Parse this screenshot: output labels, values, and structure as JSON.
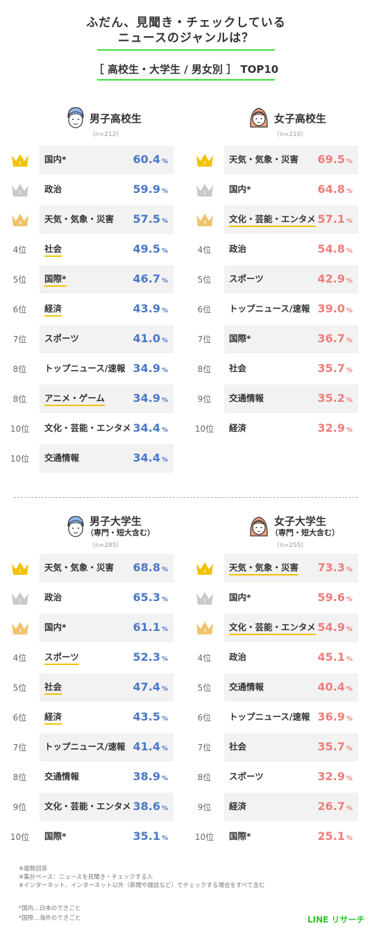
{
  "header": {
    "title_line1": "ふだん、見聞き・チェックしている",
    "title_line2": "ニュースのジャンルは？",
    "subtitle": "［ 高校生・大学生 / 男女別 ］ TOP10"
  },
  "colors": {
    "boys": "#4a78c8",
    "girls": "#ef7d78",
    "accent_green": "#39e039",
    "gold": "#f2c200",
    "silver": "#c8c8c8",
    "bronze": "#eec36b"
  },
  "chart_data": [
    {
      "type": "table",
      "group": "男子高校生",
      "group_sub": "",
      "n": "（n=212）",
      "ranks": [
        "1",
        "2",
        "3",
        "4位",
        "5位",
        "6位",
        "7位",
        "8位",
        "8位",
        "10位",
        "10位"
      ],
      "categories": [
        "国内*",
        "政治",
        "天気・気象・災害",
        "社会",
        "国際*",
        "経済",
        "スポーツ",
        "トップニュース/速報",
        "アニメ・ゲーム",
        "文化・芸能・エンタメ",
        "交通情報"
      ],
      "values": [
        60.4,
        59.9,
        57.5,
        49.5,
        46.7,
        43.9,
        41.0,
        34.9,
        34.9,
        34.4,
        34.4
      ],
      "labels": [
        "60.4",
        "59.9",
        "57.5",
        "49.5",
        "46.7",
        "43.9",
        "41.0",
        "34.9",
        "34.9",
        "34.4",
        "34.4"
      ],
      "highlight": [
        false,
        false,
        false,
        true,
        true,
        true,
        false,
        false,
        true,
        false,
        false
      ],
      "unit": "%"
    },
    {
      "type": "table",
      "group": "女子高校生",
      "group_sub": "",
      "n": "（n=210）",
      "ranks": [
        "1",
        "2",
        "3",
        "4位",
        "5位",
        "6位",
        "7位",
        "8位",
        "9位",
        "10位"
      ],
      "categories": [
        "天気・気象・災害",
        "国内*",
        "文化・芸能・エンタメ",
        "政治",
        "スポーツ",
        "トップニュース/速報",
        "国際*",
        "社会",
        "交通情報",
        "経済"
      ],
      "values": [
        69.5,
        64.8,
        57.1,
        54.8,
        42.9,
        39.0,
        36.7,
        35.7,
        35.2,
        32.9
      ],
      "labels": [
        "69.5",
        "64.8",
        "57.1",
        "54.8",
        "42.9",
        "39.0",
        "36.7",
        "35.7",
        "35.2",
        "32.9"
      ],
      "highlight": [
        false,
        false,
        true,
        false,
        false,
        false,
        false,
        false,
        false,
        false
      ],
      "unit": "%"
    },
    {
      "type": "table",
      "group": "男子大学生",
      "group_sub": "（専門・短大含む）",
      "n": "（n=285）",
      "ranks": [
        "1",
        "2",
        "3",
        "4位",
        "5位",
        "6位",
        "7位",
        "8位",
        "9位",
        "10位"
      ],
      "categories": [
        "天気・気象・災害",
        "政治",
        "国内*",
        "スポーツ",
        "社会",
        "経済",
        "トップニュース/速報",
        "交通情報",
        "文化・芸能・エンタメ",
        "国際*"
      ],
      "values": [
        68.8,
        65.3,
        61.1,
        52.3,
        47.4,
        43.5,
        41.4,
        38.9,
        38.6,
        35.1
      ],
      "labels": [
        "68.8",
        "65.3",
        "61.1",
        "52.3",
        "47.4",
        "43.5",
        "41.4",
        "38.9",
        "38.6",
        "35.1"
      ],
      "highlight": [
        false,
        false,
        false,
        true,
        true,
        true,
        false,
        false,
        false,
        false
      ],
      "unit": "%"
    },
    {
      "type": "table",
      "group": "女子大学生",
      "group_sub": "（専門・短大含む）",
      "n": "（n=255）",
      "ranks": [
        "1",
        "2",
        "3",
        "4位",
        "5位",
        "6位",
        "7位",
        "8位",
        "9位",
        "10位"
      ],
      "categories": [
        "天気・気象・災害",
        "国内*",
        "文化・芸能・エンタメ",
        "政治",
        "交通情報",
        "トップニュース/速報",
        "社会",
        "スポーツ",
        "経済",
        "国際*"
      ],
      "values": [
        73.3,
        59.6,
        54.9,
        45.1,
        40.4,
        36.9,
        35.7,
        32.9,
        26.7,
        25.1
      ],
      "labels": [
        "73.3",
        "59.6",
        "54.9",
        "45.1",
        "40.4",
        "36.9",
        "35.7",
        "32.9",
        "26.7",
        "25.1"
      ],
      "highlight": [
        true,
        false,
        true,
        false,
        false,
        false,
        false,
        false,
        false,
        false
      ],
      "unit": "%"
    }
  ],
  "notes": [
    "※複数回答",
    "※集計ベース：ニュースを見聞き・チェックする人",
    "※インターネット、インターネット以外（新聞や雑誌など）でチェックする場合をすべて含む"
  ],
  "footnotes": [
    "*国内…日本のできごと",
    "*国際…海外のできごと"
  ],
  "brand": "LINE リサーチ"
}
